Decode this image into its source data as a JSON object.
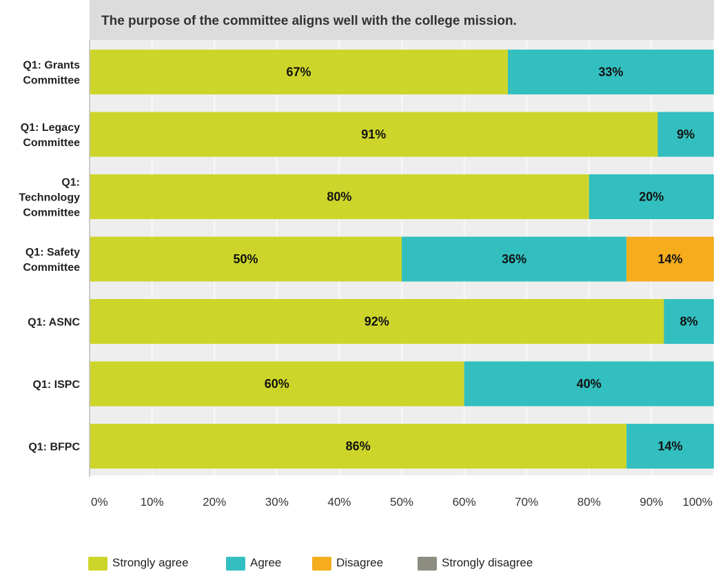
{
  "chart_data": {
    "type": "bar",
    "orientation": "horizontal",
    "stacked": true,
    "title": "The purpose of the committee aligns well with the college mission.",
    "categories": [
      "Q1: Grants Committee",
      "Q1: Legacy Committee",
      "Q1: Technology Committee",
      "Q1: Safety Committee",
      "Q1: ASNC",
      "Q1: ISPC",
      "Q1: BFPC"
    ],
    "series": [
      {
        "name": "Strongly agree",
        "color": "#cdd52a",
        "values": [
          67,
          91,
          80,
          50,
          92,
          60,
          86
        ]
      },
      {
        "name": "Agree",
        "color": "#33bfbf",
        "values": [
          33,
          9,
          20,
          36,
          8,
          40,
          14
        ]
      },
      {
        "name": "Disagree",
        "color": "#f5ad1e",
        "values": [
          0,
          0,
          0,
          14,
          0,
          0,
          0
        ]
      },
      {
        "name": "Strongly disagree",
        "color": "#8c8c80",
        "values": [
          0,
          0,
          0,
          0,
          0,
          0,
          0
        ]
      }
    ],
    "value_suffix": "%",
    "xlim": [
      0,
      100
    ],
    "xticks": [
      "0%",
      "10%",
      "20%",
      "30%",
      "40%",
      "50%",
      "60%",
      "70%",
      "80%",
      "90%",
      "100%"
    ],
    "grid": true,
    "legend_position": "bottom"
  }
}
